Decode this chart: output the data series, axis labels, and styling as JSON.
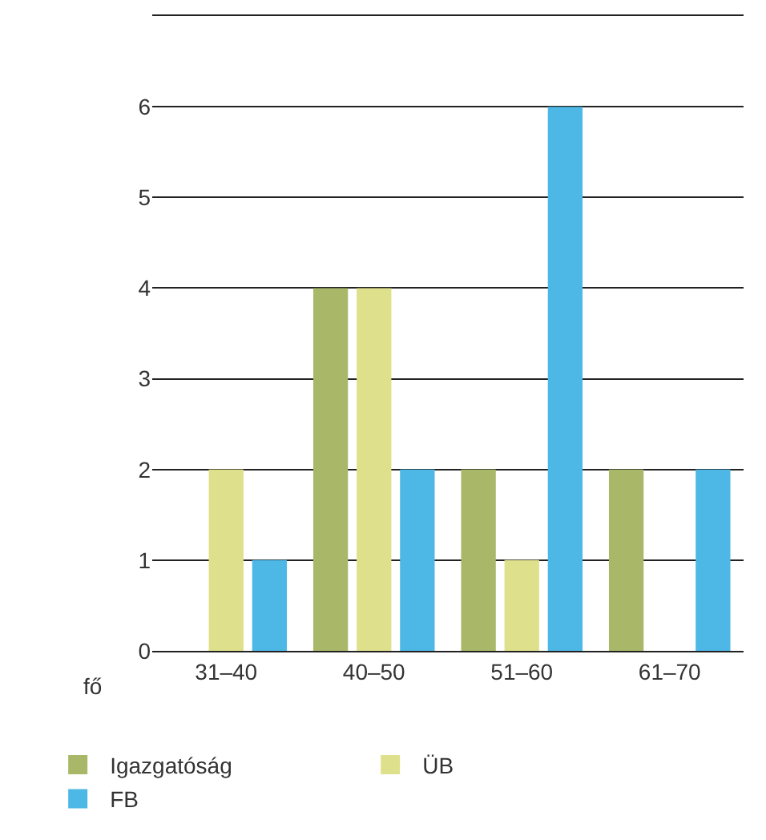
{
  "chart_data": {
    "type": "bar",
    "ylabel": "fő",
    "categories": [
      "31–40",
      "40–50",
      "51–60",
      "61–70"
    ],
    "series": [
      {
        "name": "Igazgatóság",
        "color": "#a8b868",
        "values": [
          0,
          4,
          2,
          2
        ]
      },
      {
        "name": "ÜB",
        "color": "#dfe08c",
        "values": [
          2,
          4,
          1,
          0
        ]
      },
      {
        "name": "FB",
        "color": "#4db7e6",
        "values": [
          1,
          2,
          6,
          2
        ]
      }
    ],
    "ylim": [
      0,
      7
    ],
    "yticks": [
      0,
      1,
      2,
      3,
      4,
      5,
      6,
      {
        "value": 7,
        "label": null
      }
    ],
    "grid": "y",
    "legend": "bottom"
  }
}
